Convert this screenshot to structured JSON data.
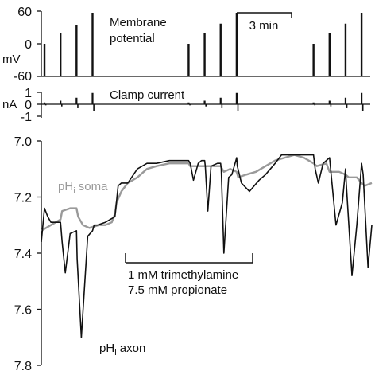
{
  "colors": {
    "axon": "#111111",
    "soma": "#9a9a9a",
    "ink": "#111111"
  },
  "chart_data": [
    {
      "type": "line",
      "panel": "membrane-potential",
      "title": "Membrane potential",
      "ylabel": "mV",
      "ylim": [
        -60,
        60
      ],
      "yticks": [
        "60",
        "0",
        "-60"
      ],
      "scalebar_label": "3 min",
      "x_unit": "min",
      "spikes": {
        "group1_times": [
          0.1,
          0.6,
          1.1,
          1.6
        ],
        "group1_peaks": [
          0,
          20,
          35,
          57
        ],
        "group2_times": [
          4.6,
          5.1,
          5.6,
          6.1
        ],
        "group2_peaks": [
          0,
          20,
          37,
          57
        ],
        "group3_times": [
          8.5,
          9.0,
          9.5,
          10.0
        ],
        "group3_peaks": [
          0,
          20,
          37,
          57
        ]
      }
    },
    {
      "type": "line",
      "panel": "clamp-current",
      "title": "Clamp current",
      "ylabel": "nA",
      "ylim": [
        -1,
        1
      ],
      "yticks": [
        "1",
        "0",
        "-1"
      ],
      "pulses": {
        "group1_times": [
          0.1,
          0.6,
          1.1,
          1.6
        ],
        "group1_amps": [
          0.15,
          0.3,
          0.55,
          0.95
        ],
        "group2_times": [
          4.6,
          5.1,
          5.6,
          6.1
        ],
        "group2_amps": [
          0.15,
          0.3,
          0.55,
          0.95
        ],
        "group3_times": [
          8.5,
          9.0,
          9.5,
          10.0
        ],
        "group3_amps": [
          0.15,
          0.3,
          0.55,
          0.95
        ]
      }
    },
    {
      "type": "line",
      "panel": "ph",
      "ylabel": "",
      "ylim": [
        7.8,
        7.0
      ],
      "yticks": [
        "7.0",
        "7.2",
        "7.4",
        "7.6",
        "7.8"
      ],
      "annotation_lines": [
        "1 mM trimethylamine",
        "7.5 mM propionate"
      ],
      "application_period_min": [
        2.3,
        6.3
      ],
      "series": [
        {
          "name": "pHi axon",
          "name_base": "pH",
          "name_sub": "i",
          "name_rest": " axon",
          "x": [
            0.0,
            0.1,
            0.2,
            0.3,
            0.45,
            0.6,
            0.65,
            0.75,
            0.9,
            1.1,
            1.12,
            1.25,
            1.45,
            1.6,
            1.65,
            1.75,
            2.0,
            2.3,
            2.4,
            2.5,
            2.7,
            3.0,
            3.3,
            3.6,
            4.0,
            4.3,
            4.6,
            4.65,
            4.75,
            4.9,
            5.0,
            5.1,
            5.12,
            5.2,
            5.3,
            5.5,
            5.6,
            5.62,
            5.7,
            5.85,
            5.95,
            6.1,
            6.12,
            6.25,
            6.5,
            6.8,
            7.0,
            7.3,
            7.5,
            7.9,
            8.2,
            8.5,
            8.55,
            8.65,
            8.8,
            9.0,
            9.05,
            9.2,
            9.4,
            9.5,
            9.52,
            9.7,
            9.85,
            10.0,
            10.05,
            10.2,
            10.32
          ],
          "y": [
            7.36,
            7.24,
            7.27,
            7.29,
            7.29,
            7.29,
            7.36,
            7.47,
            7.33,
            7.32,
            7.42,
            7.7,
            7.34,
            7.32,
            7.3,
            7.3,
            7.29,
            7.27,
            7.16,
            7.15,
            7.15,
            7.1,
            7.08,
            7.08,
            7.07,
            7.07,
            7.07,
            7.08,
            7.14,
            7.08,
            7.07,
            7.07,
            7.09,
            7.25,
            7.09,
            7.08,
            7.08,
            7.1,
            7.4,
            7.13,
            7.12,
            7.06,
            7.09,
            7.15,
            7.18,
            7.14,
            7.12,
            7.08,
            7.05,
            7.05,
            7.05,
            7.05,
            7.1,
            7.15,
            7.08,
            7.06,
            7.12,
            7.3,
            7.22,
            7.1,
            7.15,
            7.48,
            7.3,
            7.08,
            7.12,
            7.45,
            7.3
          ]
        },
        {
          "name": "pHi soma",
          "name_base": "pH",
          "name_sub": "i",
          "name_rest": " soma",
          "x": [
            0.0,
            0.3,
            0.6,
            0.65,
            0.9,
            1.1,
            1.15,
            1.3,
            1.5,
            1.8,
            2.0,
            2.2,
            2.3,
            2.35,
            2.5,
            2.7,
            3.0,
            3.3,
            3.6,
            4.0,
            4.3,
            4.6,
            4.65,
            4.9,
            5.1,
            5.5,
            5.6,
            5.7,
            5.9,
            6.1,
            6.15,
            6.4,
            6.7,
            7.0,
            7.3,
            7.6,
            7.9,
            8.2,
            8.5,
            8.6,
            8.9,
            9.0,
            9.3,
            9.5,
            9.6,
            9.85,
            10.0,
            10.1,
            10.32
          ],
          "y": [
            7.32,
            7.3,
            7.28,
            7.25,
            7.24,
            7.24,
            7.27,
            7.3,
            7.31,
            7.3,
            7.3,
            7.29,
            7.26,
            7.22,
            7.18,
            7.15,
            7.13,
            7.1,
            7.09,
            7.08,
            7.08,
            7.08,
            7.09,
            7.09,
            7.09,
            7.09,
            7.09,
            7.11,
            7.1,
            7.11,
            7.13,
            7.12,
            7.11,
            7.09,
            7.07,
            7.06,
            7.05,
            7.06,
            7.08,
            7.09,
            7.08,
            7.11,
            7.11,
            7.12,
            7.13,
            7.13,
            7.15,
            7.16,
            7.15
          ]
        }
      ]
    }
  ]
}
